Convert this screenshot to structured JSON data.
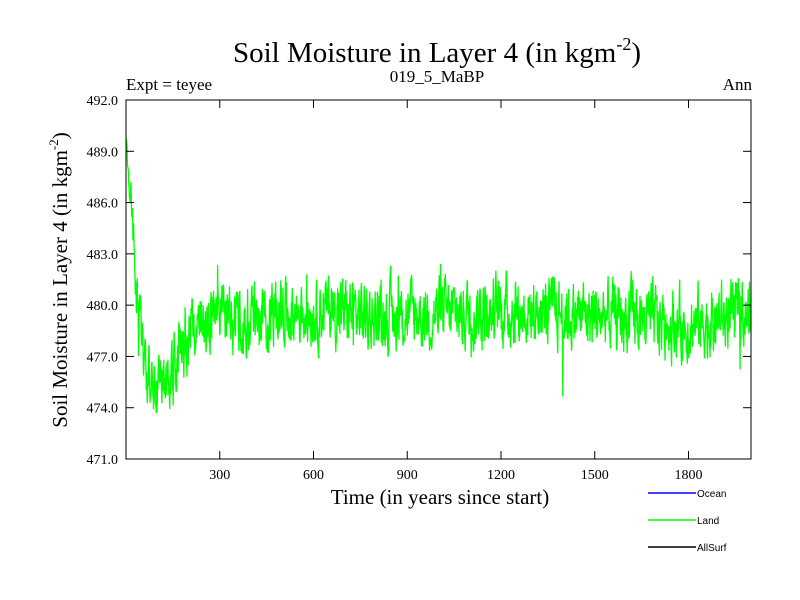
{
  "chart_data": {
    "type": "line",
    "title_main": "Soil Moisture in Layer 4 (in kgm",
    "title_sup": "-2",
    "title_close": ")",
    "subtitle_left": "Expt = teyee",
    "subtitle_center": "019_5_MaBP",
    "subtitle_right": "Ann",
    "xlabel": "Time (in years since start)",
    "ylabel_main": "Soil Moisture in Layer 4 (in kgm",
    "ylabel_sup": "-2",
    "ylabel_close": ")",
    "xlim": [
      0,
      2000
    ],
    "ylim": [
      471.0,
      492.0
    ],
    "xticks": [
      300,
      600,
      900,
      1200,
      1500,
      1800
    ],
    "xtick_labels": [
      "300",
      "600",
      "900",
      "1200",
      "1500",
      "1800"
    ],
    "yticks": [
      471.0,
      474.0,
      477.0,
      480.0,
      483.0,
      486.0,
      489.0,
      492.0
    ],
    "ytick_labels": [
      "471.0",
      "474.0",
      "477.0",
      "480.0",
      "483.0",
      "486.0",
      "489.0",
      "492.0"
    ],
    "legend_position": "bottom-right",
    "series": [
      {
        "name": "Ocean",
        "color": "#0000ff",
        "values": []
      },
      {
        "name": "Land",
        "color": "#00ff00",
        "trend": [
          [
            0,
            489.5
          ],
          [
            10,
            487.0
          ],
          [
            25,
            483.0
          ],
          [
            45,
            479.0
          ],
          [
            70,
            476.5
          ],
          [
            100,
            475.0
          ],
          [
            140,
            475.5
          ],
          [
            180,
            477.5
          ],
          [
            250,
            479.0
          ],
          [
            350,
            479.3
          ],
          [
            500,
            479.6
          ],
          [
            650,
            479.8
          ],
          [
            800,
            479.3
          ],
          [
            1000,
            479.5
          ],
          [
            1200,
            479.7
          ],
          [
            1400,
            479.5
          ],
          [
            1600,
            479.3
          ],
          [
            1800,
            478.8
          ],
          [
            2000,
            479.5
          ]
        ],
        "noise_amplitude": 1.5,
        "samples": 2000,
        "seed": 19
      },
      {
        "name": "AllSurf",
        "color": "#000000",
        "values": []
      }
    ]
  }
}
